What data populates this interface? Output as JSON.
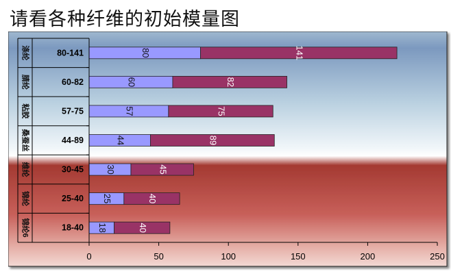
{
  "page_title": "请看各种纤维的初始模量图",
  "chart_data": {
    "type": "bar",
    "orientation": "horizontal",
    "stacked": true,
    "categories": [
      {
        "name": "涤纶",
        "range": "80-141"
      },
      {
        "name": "腈纶",
        "range": "60-82"
      },
      {
        "name": "粘胶",
        "range": "57-75"
      },
      {
        "name": "桑蚕丝",
        "range": "44-89"
      },
      {
        "name": "维纶",
        "range": "30-45"
      },
      {
        "name": "锦纶",
        "range": "25-40"
      },
      {
        "name": "锦纶6",
        "range": "18-40"
      }
    ],
    "series": [
      {
        "values": [
          80,
          60,
          57,
          44,
          30,
          25,
          18
        ],
        "color": "#9999ff"
      },
      {
        "values": [
          141,
          82,
          75,
          89,
          45,
          40,
          40
        ],
        "color": "#993366"
      }
    ],
    "xlim": [
      0,
      250
    ],
    "xticks": [
      0,
      50,
      100,
      150,
      200,
      250
    ],
    "grid": false,
    "legend": "none"
  }
}
